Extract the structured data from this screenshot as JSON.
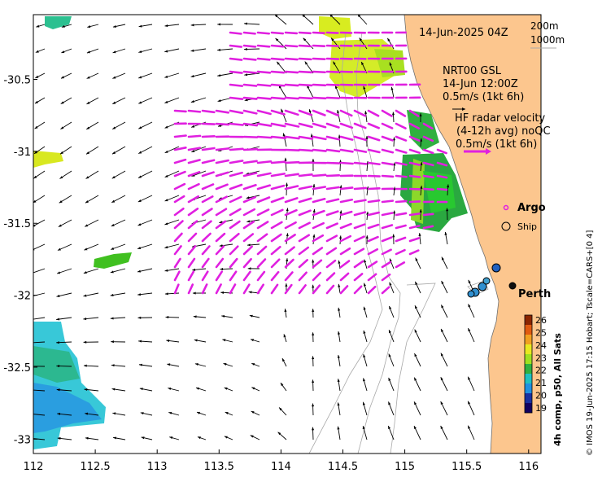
{
  "header": {
    "date": "14-Jun-2025 04Z",
    "contour_200": "200m",
    "contour_1000": "1000m"
  },
  "legend": {
    "model_title": "NRT00 GSL",
    "model_time": "14-Jun 12:00Z",
    "model_scale": "0.5m/s (1kt 6h)",
    "radar_title": "HF radar velocity",
    "radar_avg": "(4-12h avg) noQC",
    "radar_scale": "0.5m/s (1kt 6h)",
    "argo_label": "Argo",
    "ship_label": "Ship"
  },
  "places": {
    "city": "Perth"
  },
  "credit": "© IMOS 19-Jun-2025 17:15 Hobart; Tscale=CARS+[0 4]",
  "colorbar": {
    "title": "4h comp, p50, All Sats",
    "ticks": [
      "26",
      "25",
      "24",
      "23",
      "22",
      "21",
      "20",
      "19"
    ],
    "colors": [
      "#8b2500",
      "#e05a10",
      "#f0a020",
      "#e8e820",
      "#a0e020",
      "#30b040",
      "#20c0c0",
      "#2090e0",
      "#1830a0",
      "#100060"
    ]
  },
  "chart_data": {
    "type": "map",
    "x_axis": {
      "ticks": [
        "112",
        "112.5",
        "113",
        "113.5",
        "114",
        "114.5",
        "115",
        "115.5",
        "116"
      ],
      "range": [
        112,
        116.1
      ]
    },
    "y_axis": {
      "ticks": [
        "-30.5",
        "-31",
        "-31.5",
        "-32",
        "-32.5",
        "-33"
      ],
      "range": [
        -33.1,
        -30.05
      ]
    },
    "colors": {
      "land": "#fcc68e",
      "radar_vectors": "#e020e0",
      "model_vectors": "#000000",
      "contours": "#a0a0a0"
    }
  }
}
